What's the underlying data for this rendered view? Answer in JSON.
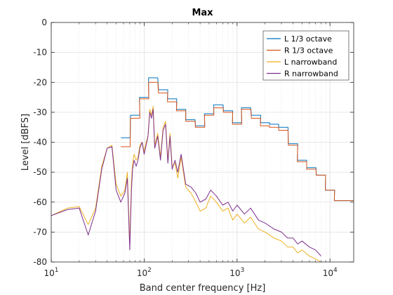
{
  "chart_data": {
    "type": "line",
    "title": "Max",
    "xlabel": "Band center frequency [Hz]",
    "ylabel": "Level [dBFS]",
    "x_scale": "log",
    "xlim": [
      10,
      18000
    ],
    "ylim": [
      -80,
      0
    ],
    "x_ticks": [
      {
        "base": "10",
        "exp": "1"
      },
      {
        "base": "10",
        "exp": "2"
      },
      {
        "base": "10",
        "exp": "3"
      },
      {
        "base": "10",
        "exp": "4"
      }
    ],
    "y_ticks": [
      "0",
      "-10",
      "-20",
      "-30",
      "-40",
      "-50",
      "-60",
      "-70",
      "-80"
    ],
    "grid": true,
    "legend_position": "top-right",
    "colors": {
      "L 1/3 octave": "#0072BD",
      "R 1/3 octave": "#D95319",
      "L narrowband": "#EDB120",
      "R narrowband": "#7E2F8E"
    },
    "series": [
      {
        "name": "L 1/3 octave",
        "style": "step",
        "x": [
          63,
          80,
          100,
          125,
          160,
          200,
          250,
          315,
          400,
          500,
          630,
          800,
          1000,
          1250,
          1600,
          2000,
          2500,
          3150,
          4000,
          5000,
          6300,
          8000,
          10000,
          12500,
          16000
        ],
        "y": [
          -38.5,
          -31,
          -25,
          -18.5,
          -22.5,
          -25.5,
          -29,
          -32.5,
          -34.5,
          -30.5,
          -27.5,
          -29.5,
          -33.5,
          -28.5,
          -31,
          -33.5,
          -34,
          -35,
          -40.5,
          -46,
          -48.5,
          -51,
          -56,
          -59.5,
          -59.5
        ]
      },
      {
        "name": "R 1/3 octave",
        "style": "step",
        "x": [
          63,
          80,
          100,
          125,
          160,
          200,
          250,
          315,
          400,
          500,
          630,
          800,
          1000,
          1250,
          1600,
          2000,
          2500,
          3150,
          4000,
          5000,
          6300,
          8000,
          10000,
          12500,
          16000
        ],
        "y": [
          -41.5,
          -32,
          -25.5,
          -20,
          -23.5,
          -26.5,
          -29.5,
          -33,
          -35,
          -31,
          -28.5,
          -30,
          -34,
          -29,
          -32,
          -34.5,
          -35,
          -36,
          -41,
          -46.5,
          -49,
          -51,
          -56,
          -59.5,
          -59.5
        ]
      },
      {
        "name": "L narrowband",
        "style": "line",
        "x": [
          10,
          15,
          20,
          25,
          30,
          35,
          40,
          45,
          50,
          56,
          62,
          66,
          70,
          73,
          75,
          78,
          82,
          86,
          90,
          95,
          100,
          105,
          110,
          115,
          120,
          125,
          130,
          140,
          150,
          160,
          170,
          180,
          190,
          200,
          215,
          230,
          250,
          280,
          320,
          360,
          400,
          460,
          520,
          600,
          700,
          800,
          900,
          1000,
          1200,
          1400,
          1700,
          2000,
          2500,
          3000,
          3500,
          4000,
          4500,
          5000,
          6000,
          7000,
          8000
        ],
        "y": [
          -64.5,
          -62,
          -61.5,
          -67.5,
          -62,
          -48,
          -42,
          -41,
          -54,
          -58,
          -56,
          -50,
          -74,
          -53,
          -47,
          -44,
          -46,
          -45,
          -41,
          -40,
          -43,
          -40,
          -38,
          -29,
          -31,
          -28,
          -41,
          -37,
          -45,
          -35,
          -33,
          -46,
          -37,
          -48,
          -47,
          -52,
          -45,
          -55,
          -57,
          -60,
          -63,
          -62,
          -58,
          -60,
          -63,
          -62,
          -66,
          -64,
          -67,
          -65,
          -69,
          -70,
          -72,
          -73,
          -75,
          -75,
          -77,
          -76,
          -78,
          -79,
          -80
        ]
      },
      {
        "name": "R narrowband",
        "style": "line",
        "x": [
          10,
          15,
          20,
          25,
          30,
          35,
          40,
          45,
          50,
          56,
          62,
          66,
          70,
          73,
          75,
          78,
          82,
          86,
          90,
          95,
          100,
          105,
          110,
          115,
          120,
          125,
          130,
          140,
          150,
          160,
          170,
          180,
          190,
          200,
          215,
          230,
          250,
          280,
          320,
          360,
          400,
          460,
          520,
          600,
          700,
          800,
          900,
          1000,
          1200,
          1400,
          1700,
          2000,
          2500,
          3000,
          3500,
          4000,
          4500,
          5000,
          6000,
          7000,
          8000
        ],
        "y": [
          -64.5,
          -62.5,
          -62,
          -71,
          -63,
          -49,
          -42,
          -41.5,
          -56,
          -60,
          -57,
          -52,
          -76,
          -56,
          -49,
          -46,
          -48,
          -46,
          -42,
          -40,
          -44,
          -41,
          -38,
          -30,
          -32,
          -29,
          -42,
          -38,
          -46,
          -36,
          -34,
          -47,
          -38,
          -49,
          -46,
          -50,
          -44,
          -54,
          -55,
          -57,
          -60,
          -59,
          -56,
          -58,
          -61,
          -60,
          -63,
          -61,
          -64,
          -62,
          -66,
          -67,
          -69,
          -70,
          -72,
          -72,
          -74,
          -73,
          -75,
          -76,
          -78
        ]
      }
    ]
  }
}
